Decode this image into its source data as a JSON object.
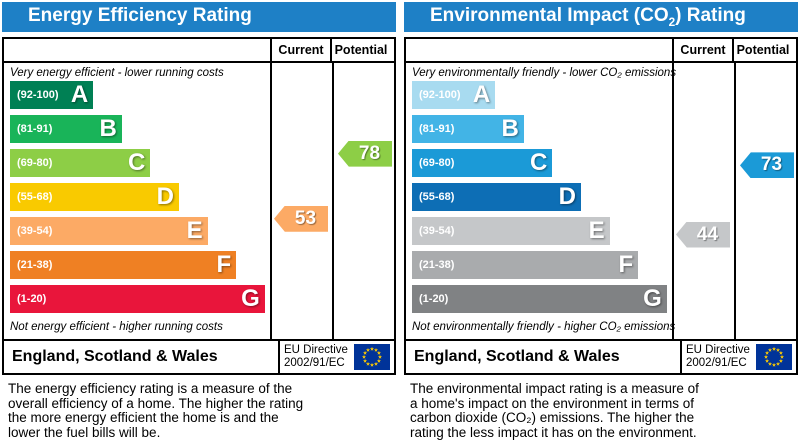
{
  "chart_data": [
    {
      "type": "bar",
      "title_pre": "Energy Efficiency Rating",
      "title_sub": "",
      "title_post": "",
      "columns": {
        "current": "Current",
        "potential": "Potential"
      },
      "top_caption": "Very energy efficient - lower running costs",
      "bottom_caption": "Not energy efficient - higher running costs",
      "bands": [
        {
          "label": "(92-100)",
          "letter": "A",
          "min": 92,
          "max": 100,
          "color": "#008054"
        },
        {
          "label": "(81-91)",
          "letter": "B",
          "min": 81,
          "max": 91,
          "color": "#19b459"
        },
        {
          "label": "(69-80)",
          "letter": "C",
          "min": 69,
          "max": 80,
          "color": "#8dce46"
        },
        {
          "label": "(55-68)",
          "letter": "D",
          "min": 55,
          "max": 68,
          "color": "#f9ca00"
        },
        {
          "label": "(39-54)",
          "letter": "E",
          "min": 39,
          "max": 54,
          "color": "#fcaa65"
        },
        {
          "label": "(21-38)",
          "letter": "F",
          "min": 21,
          "max": 38,
          "color": "#ef8023"
        },
        {
          "label": "(1-20)",
          "letter": "G",
          "min": 1,
          "max": 20,
          "color": "#e9153b"
        }
      ],
      "current": {
        "value": 53,
        "color": "#fcaa65"
      },
      "potential": {
        "value": 78,
        "color": "#8dce46"
      },
      "footer": {
        "region": "England, Scotland & Wales",
        "directive": "EU Directive\n2002/91/EC"
      },
      "description": "The energy efficiency rating is a measure of the\noverall efficiency of a home. The higher the rating\nthe more energy efficient the home is and the\nlower the fuel bills will be."
    },
    {
      "type": "bar",
      "title_pre": "Environmental Impact (CO",
      "title_sub": "2",
      "title_post": ") Rating",
      "columns": {
        "current": "Current",
        "potential": "Potential"
      },
      "top_caption": "Very environmentally friendly - lower CO₂ emissions",
      "bottom_caption": "Not environmentally friendly - higher CO₂ emissions",
      "bands": [
        {
          "label": "(92-100)",
          "letter": "A",
          "min": 92,
          "max": 100,
          "color": "#a8dbf0"
        },
        {
          "label": "(81-91)",
          "letter": "B",
          "min": 81,
          "max": 91,
          "color": "#42b4e6"
        },
        {
          "label": "(69-80)",
          "letter": "C",
          "min": 69,
          "max": 80,
          "color": "#1b9ad7"
        },
        {
          "label": "(55-68)",
          "letter": "D",
          "min": 55,
          "max": 68,
          "color": "#0d6eb5"
        },
        {
          "label": "(39-54)",
          "letter": "E",
          "min": 39,
          "max": 54,
          "color": "#c5c7c9"
        },
        {
          "label": "(21-38)",
          "letter": "F",
          "min": 21,
          "max": 38,
          "color": "#a9abad"
        },
        {
          "label": "(1-20)",
          "letter": "G",
          "min": 1,
          "max": 20,
          "color": "#808284"
        }
      ],
      "current": {
        "value": 44,
        "color": "#c5c7c9"
      },
      "potential": {
        "value": 73,
        "color": "#1b9ad7"
      },
      "footer": {
        "region": "England, Scotland & Wales",
        "directive": "EU Directive\n2002/91/EC"
      },
      "description": "The environmental impact rating is a measure of\na home's impact on the environment in terms of\ncarbon dioxide (CO₂) emissions. The higher the\nrating the less impact it has on the environment."
    }
  ],
  "colors": {
    "header_bar": "#1e80c6",
    "eu_flag_blue": "#003399",
    "eu_flag_stars": "#ffcc00"
  }
}
